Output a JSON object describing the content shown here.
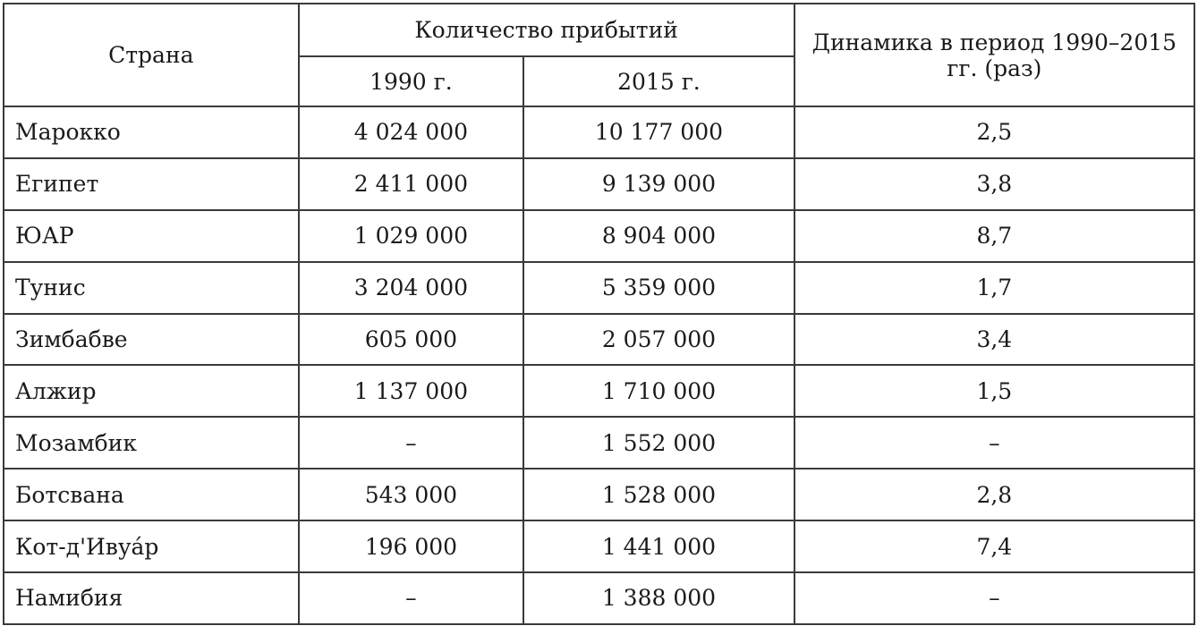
{
  "headers": {
    "country": "Страна",
    "arrivals": "Количество прибытий",
    "year1990": "1990 г.",
    "year2015": "2015 г.",
    "dynamics": "Динамика в период 1990–2015 гг. (раз)"
  },
  "rows": [
    {
      "country": "Марокко",
      "y1990": "4 024 000",
      "y2015": "10 177 000",
      "dyn": "2,5"
    },
    {
      "country": "Египет",
      "y1990": "2 411 000",
      "y2015": "9 139 000",
      "dyn": "3,8"
    },
    {
      "country": "ЮАР",
      "y1990": "1 029 000",
      "y2015": "8 904 000",
      "dyn": "8,7"
    },
    {
      "country": "Тунис",
      "y1990": "3 204 000",
      "y2015": "5 359 000",
      "dyn": "1,7"
    },
    {
      "country": "Зимбабве",
      "y1990": "605 000",
      "y2015": "2 057 000",
      "dyn": "3,4"
    },
    {
      "country": "Алжир",
      "y1990": "1 137 000",
      "y2015": "1 710 000",
      "dyn": "1,5"
    },
    {
      "country": "Мозамбик",
      "y1990": "–",
      "y2015": "1 552 000",
      "dyn": "–"
    },
    {
      "country": "Ботсвана",
      "y1990": "543 000",
      "y2015": "1 528 000",
      "dyn": "2,8"
    },
    {
      "country": "Кот-д'Ивуа́р",
      "y1990": "196 000",
      "y2015": "1 441 000",
      "dyn": "7,4"
    },
    {
      "country": "Намибия",
      "y1990": "–",
      "y2015": "1 388 000",
      "dyn": "–"
    }
  ]
}
